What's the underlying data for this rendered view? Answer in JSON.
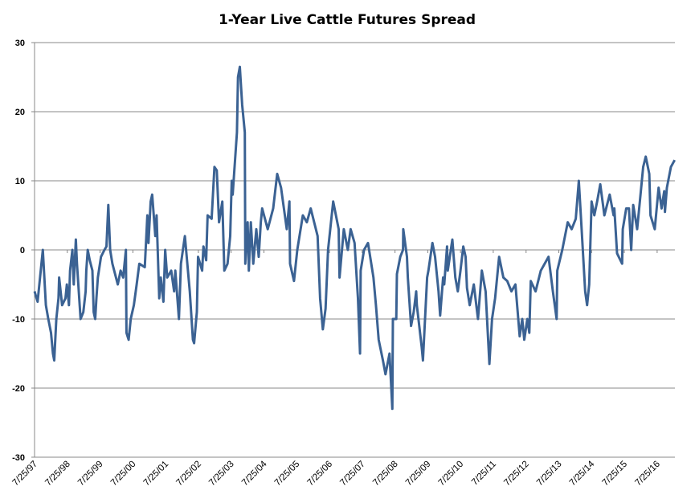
{
  "chart_data": {
    "type": "line",
    "title": "1-Year Live Cattle Futures Spread",
    "xlabel": "",
    "ylabel": "",
    "ylim": [
      -30,
      30
    ],
    "yticks": [
      30,
      20,
      10,
      0,
      -10,
      -20,
      -30
    ],
    "xlim": [
      "1997-07-25",
      "2017-02-08"
    ],
    "xtick_labels": [
      "7/25/97",
      "7/25/98",
      "7/25/99",
      "7/25/00",
      "7/25/01",
      "7/25/02",
      "7/25/03",
      "7/25/04",
      "7/25/05",
      "7/25/06",
      "7/25/07",
      "7/25/08",
      "7/25/09",
      "7/25/10",
      "7/25/11",
      "7/25/12",
      "7/25/13",
      "7/25/14",
      "7/25/15",
      "7/25/16"
    ],
    "xtick_dates": [
      "1997-07-25",
      "1998-07-25",
      "1999-07-25",
      "2000-07-25",
      "2001-07-25",
      "2002-07-25",
      "2003-07-25",
      "2004-07-25",
      "2005-07-25",
      "2006-07-25",
      "2007-07-25",
      "2008-07-25",
      "2009-07-25",
      "2010-07-25",
      "2011-07-25",
      "2012-07-25",
      "2013-07-25",
      "2014-07-25",
      "2015-07-25",
      "2016-07-25"
    ],
    "grid": "horizontal",
    "legend": "none",
    "line_color": "#3b6293",
    "series": [
      {
        "points": [
          [
            "1997-07-25",
            -6
          ],
          [
            "1997-08-28",
            -7.5
          ],
          [
            "1997-10-25",
            0
          ],
          [
            "1997-11-28",
            -8
          ],
          [
            "1997-12-25",
            -10
          ],
          [
            "1998-01-25",
            -12
          ],
          [
            "1998-02-15",
            -15
          ],
          [
            "1998-03-01",
            -16
          ],
          [
            "1998-03-25",
            -10
          ],
          [
            "1998-04-18",
            -7
          ],
          [
            "1998-04-25",
            -4
          ],
          [
            "1998-05-28",
            -8
          ],
          [
            "1998-07-05",
            -7
          ],
          [
            "1998-07-20",
            -5
          ],
          [
            "1998-08-12",
            -8
          ],
          [
            "1998-08-25",
            -3
          ],
          [
            "1998-09-20",
            0
          ],
          [
            "1998-10-05",
            -5
          ],
          [
            "1998-10-28",
            1.5
          ],
          [
            "1998-11-10",
            -2
          ],
          [
            "1998-12-05",
            -7
          ],
          [
            "1998-12-20",
            -10
          ],
          [
            "1999-01-20",
            -9
          ],
          [
            "1999-02-15",
            -6
          ],
          [
            "1999-02-22",
            -3
          ],
          [
            "1999-03-10",
            0
          ],
          [
            "1999-04-01",
            -1.5
          ],
          [
            "1999-05-01",
            -3
          ],
          [
            "1999-05-15",
            -9
          ],
          [
            "1999-06-01",
            -10
          ],
          [
            "1999-06-15",
            -7
          ],
          [
            "1999-07-01",
            -4
          ],
          [
            "1999-08-05",
            -1
          ],
          [
            "1999-09-12",
            0
          ],
          [
            "1999-10-05",
            0.5
          ],
          [
            "1999-10-25",
            6.5
          ],
          [
            "1999-11-15",
            0
          ],
          [
            "1999-12-10",
            -2
          ],
          [
            "2000-02-08",
            -5
          ],
          [
            "2000-03-10",
            -3
          ],
          [
            "2000-04-08",
            -4
          ],
          [
            "2000-05-08",
            0
          ],
          [
            "2000-05-15",
            -12
          ],
          [
            "2000-06-08",
            -13
          ],
          [
            "2000-07-01",
            -10
          ],
          [
            "2000-08-05",
            -8
          ],
          [
            "2000-09-05",
            -5
          ],
          [
            "2000-10-05",
            -2
          ],
          [
            "2000-12-05",
            -2.5
          ],
          [
            "2001-01-02",
            5
          ],
          [
            "2001-01-15",
            1
          ],
          [
            "2001-02-08",
            7
          ],
          [
            "2001-02-25",
            8
          ],
          [
            "2001-04-01",
            2
          ],
          [
            "2001-04-15",
            5
          ],
          [
            "2001-05-15",
            -7
          ],
          [
            "2001-06-01",
            -4
          ],
          [
            "2001-07-01",
            -7.5
          ],
          [
            "2001-07-20",
            0
          ],
          [
            "2001-08-12",
            -4
          ],
          [
            "2001-09-25",
            -3
          ],
          [
            "2001-10-28",
            -6
          ],
          [
            "2001-11-10",
            -3
          ],
          [
            "2001-12-20",
            -10
          ],
          [
            "2002-01-12",
            -2
          ],
          [
            "2002-02-25",
            2
          ],
          [
            "2002-04-20",
            -6
          ],
          [
            "2002-05-25",
            -13
          ],
          [
            "2002-06-08",
            -13.5
          ],
          [
            "2002-07-08",
            -9
          ],
          [
            "2002-07-22",
            -1
          ],
          [
            "2002-09-05",
            -3
          ],
          [
            "2002-09-20",
            0.5
          ],
          [
            "2002-10-20",
            -1.5
          ],
          [
            "2002-11-05",
            5
          ],
          [
            "2002-12-20",
            4.5
          ],
          [
            "2003-01-20",
            12
          ],
          [
            "2003-02-15",
            11.5
          ],
          [
            "2003-03-12",
            4
          ],
          [
            "2003-04-18",
            7
          ],
          [
            "2003-05-10",
            -3
          ],
          [
            "2003-06-15",
            -2
          ],
          [
            "2003-07-15",
            2
          ],
          [
            "2003-08-01",
            10
          ],
          [
            "2003-08-12",
            8
          ],
          [
            "2003-09-28",
            17
          ],
          [
            "2003-10-10",
            25
          ],
          [
            "2003-10-30",
            26.5
          ],
          [
            "2003-11-25",
            21
          ],
          [
            "2003-12-25",
            17
          ],
          [
            "2003-12-30",
            -2
          ],
          [
            "2004-01-25",
            4
          ],
          [
            "2004-02-08",
            -3
          ],
          [
            "2004-03-01",
            4
          ],
          [
            "2004-03-28",
            -2
          ],
          [
            "2004-05-01",
            3
          ],
          [
            "2004-05-28",
            -1
          ],
          [
            "2004-06-20",
            4
          ],
          [
            "2004-07-05",
            6
          ],
          [
            "2004-09-05",
            3
          ],
          [
            "2004-11-05",
            6
          ],
          [
            "2004-12-20",
            11
          ],
          [
            "2005-02-01",
            9
          ],
          [
            "2005-04-05",
            3
          ],
          [
            "2005-05-05",
            7
          ],
          [
            "2005-05-12",
            -2
          ],
          [
            "2005-06-25",
            -4.5
          ],
          [
            "2005-08-01",
            0
          ],
          [
            "2005-10-01",
            5
          ],
          [
            "2005-11-15",
            4
          ],
          [
            "2005-12-28",
            6
          ],
          [
            "2006-03-15",
            2
          ],
          [
            "2006-04-12",
            -7
          ],
          [
            "2006-05-12",
            -11.5
          ],
          [
            "2006-06-12",
            -8.5
          ],
          [
            "2006-07-10",
            0
          ],
          [
            "2006-09-05",
            7
          ],
          [
            "2006-11-05",
            3
          ],
          [
            "2006-11-15",
            -4
          ],
          [
            "2007-01-01",
            3
          ],
          [
            "2007-02-15",
            0
          ],
          [
            "2007-03-18",
            3
          ],
          [
            "2007-05-01",
            1
          ],
          [
            "2007-06-08",
            -7
          ],
          [
            "2007-07-01",
            -15
          ],
          [
            "2007-07-08",
            -3
          ],
          [
            "2007-08-15",
            0
          ],
          [
            "2007-09-28",
            1
          ],
          [
            "2007-11-28",
            -4
          ],
          [
            "2007-12-25",
            -8
          ],
          [
            "2008-01-25",
            -13
          ],
          [
            "2008-03-12",
            -16
          ],
          [
            "2008-04-10",
            -18
          ],
          [
            "2008-05-25",
            -15
          ],
          [
            "2008-06-25",
            -23
          ],
          [
            "2008-07-01",
            -10
          ],
          [
            "2008-08-08",
            -10
          ],
          [
            "2008-08-15",
            -3.5
          ],
          [
            "2008-09-22",
            -1
          ],
          [
            "2008-10-22",
            0
          ],
          [
            "2008-10-25",
            3
          ],
          [
            "2008-12-05",
            -1
          ],
          [
            "2008-12-15",
            -4
          ],
          [
            "2009-01-20",
            -11
          ],
          [
            "2009-02-18",
            -9
          ],
          [
            "2009-03-18",
            -6
          ],
          [
            "2009-03-25",
            -8
          ],
          [
            "2009-05-18",
            -14
          ],
          [
            "2009-06-01",
            -16
          ],
          [
            "2009-07-18",
            -4
          ],
          [
            "2009-08-01",
            -3
          ],
          [
            "2009-09-15",
            1
          ],
          [
            "2009-10-15",
            -1
          ],
          [
            "2009-11-22",
            -6
          ],
          [
            "2009-12-10",
            -9.5
          ],
          [
            "2010-01-12",
            -4
          ],
          [
            "2010-01-25",
            -5
          ],
          [
            "2010-02-25",
            0.5
          ],
          [
            "2010-03-05",
            -3
          ],
          [
            "2010-04-25",
            1.5
          ],
          [
            "2010-05-28",
            -4
          ],
          [
            "2010-06-25",
            -6
          ],
          [
            "2010-07-25",
            -3
          ],
          [
            "2010-08-25",
            0.5
          ],
          [
            "2010-09-20",
            -1
          ],
          [
            "2010-10-05",
            -5.5
          ],
          [
            "2010-11-05",
            -8
          ],
          [
            "2010-12-20",
            -5
          ],
          [
            "2011-02-05",
            -10
          ],
          [
            "2011-03-20",
            -3
          ],
          [
            "2011-05-01",
            -6
          ],
          [
            "2011-06-12",
            -16.5
          ],
          [
            "2011-07-12",
            -10
          ],
          [
            "2011-08-15",
            -7
          ],
          [
            "2011-09-28",
            -1
          ],
          [
            "2011-11-15",
            -4
          ],
          [
            "2011-12-28",
            -4.5
          ],
          [
            "2012-02-12",
            -6
          ],
          [
            "2012-03-28",
            -5
          ],
          [
            "2012-05-15",
            -12.5
          ],
          [
            "2012-06-12",
            -10
          ],
          [
            "2012-07-05",
            -13
          ],
          [
            "2012-08-08",
            -10
          ],
          [
            "2012-08-30",
            -12
          ],
          [
            "2012-09-15",
            -4.5
          ],
          [
            "2012-11-08",
            -6
          ],
          [
            "2013-01-05",
            -3
          ],
          [
            "2013-04-01",
            -1
          ],
          [
            "2013-05-20",
            -6
          ],
          [
            "2013-07-01",
            -10
          ],
          [
            "2013-07-08",
            -3
          ],
          [
            "2013-09-01",
            0
          ],
          [
            "2013-11-01",
            4
          ],
          [
            "2013-12-15",
            3
          ],
          [
            "2014-01-30",
            4.5
          ],
          [
            "2014-03-05",
            10
          ],
          [
            "2014-04-05",
            3
          ],
          [
            "2014-05-15",
            -6
          ],
          [
            "2014-06-05",
            -8
          ],
          [
            "2014-06-28",
            -5
          ],
          [
            "2014-07-25",
            7
          ],
          [
            "2014-08-25",
            5
          ],
          [
            "2014-09-25",
            7
          ],
          [
            "2014-10-30",
            9.5
          ],
          [
            "2014-12-15",
            5
          ],
          [
            "2015-02-12",
            8
          ],
          [
            "2015-03-28",
            5
          ],
          [
            "2015-04-05",
            6
          ],
          [
            "2015-05-05",
            -0.5
          ],
          [
            "2015-07-01",
            -2
          ],
          [
            "2015-07-08",
            3
          ],
          [
            "2015-08-15",
            6
          ],
          [
            "2015-09-15",
            6
          ],
          [
            "2015-10-10",
            0
          ],
          [
            "2015-11-01",
            6.5
          ],
          [
            "2015-12-15",
            3
          ],
          [
            "2016-01-22",
            8
          ],
          [
            "2016-02-20",
            12
          ],
          [
            "2016-03-20",
            13.5
          ],
          [
            "2016-04-28",
            11
          ],
          [
            "2016-05-12",
            5
          ],
          [
            "2016-06-28",
            3
          ],
          [
            "2016-08-10",
            9
          ],
          [
            "2016-09-12",
            6
          ],
          [
            "2016-10-12",
            8.5
          ],
          [
            "2016-10-20",
            5.5
          ],
          [
            "2016-11-10",
            9
          ],
          [
            "2016-12-25",
            12
          ],
          [
            "2017-02-05",
            13
          ]
        ]
      }
    ]
  }
}
